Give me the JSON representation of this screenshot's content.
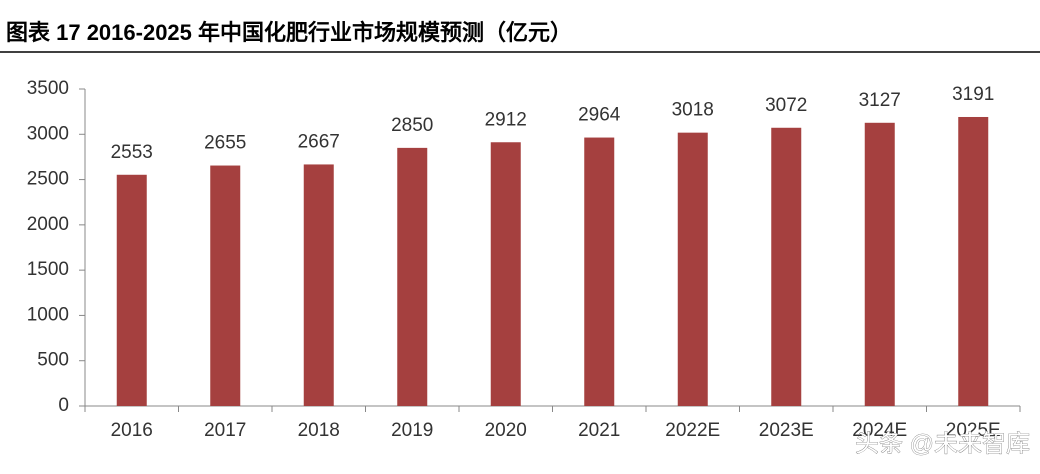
{
  "chart_data": {
    "type": "bar",
    "title": "图表 17 2016-2025 年中国化肥行业市场规模预测（亿元）",
    "categories": [
      "2016",
      "2017",
      "2018",
      "2019",
      "2020",
      "2021",
      "2022E",
      "2023E",
      "2024E",
      "2025E"
    ],
    "values": [
      2553,
      2655,
      2667,
      2850,
      2912,
      2964,
      3018,
      3072,
      3127,
      3191
    ],
    "color": "#a5403f",
    "ylim": [
      0,
      3500
    ],
    "yticks": [
      0,
      500,
      1000,
      1500,
      2000,
      2500,
      3000,
      3500
    ],
    "grid": false,
    "watermark": "头条 @未来智库"
  }
}
